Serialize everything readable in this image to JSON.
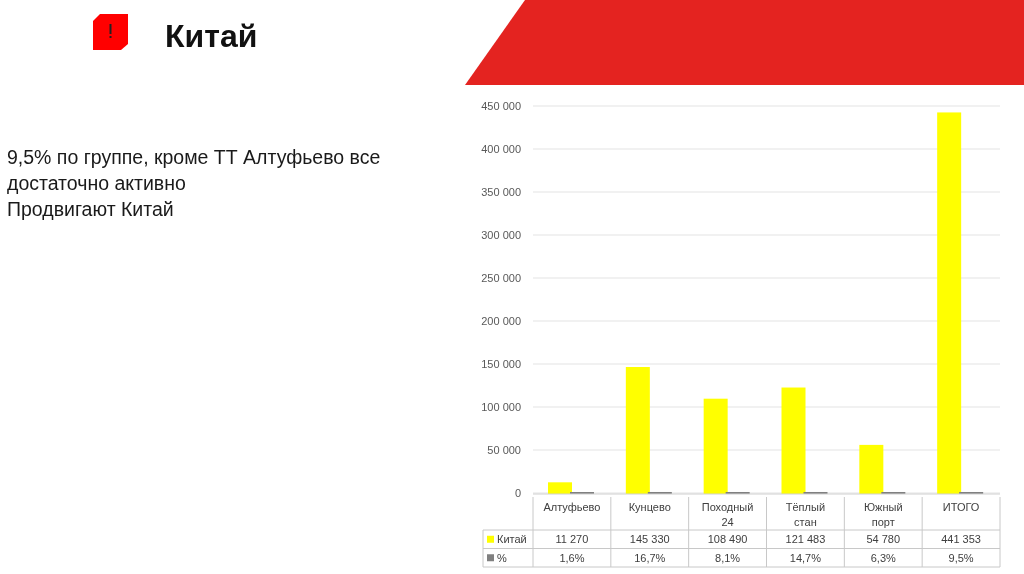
{
  "chart_data": {
    "type": "bar",
    "title": "Китай",
    "annotations": [
      "9,5% по группе, кроме ТТ Алтуфьево все достаточно активно",
      "Продвигают Китай"
    ],
    "categories": [
      "Алтуфьево",
      "Кунцево",
      "Походный 24",
      "Тёплый стан",
      "Южный порт",
      "ИТОГО"
    ],
    "series": [
      {
        "name": "Китай",
        "color": "#ffff00",
        "values": [
          11270,
          145330,
          108490,
          121483,
          54780,
          441353
        ],
        "value_labels": [
          "11 270",
          "145 330",
          "108 490",
          "121 483",
          "54 780",
          "441 353"
        ]
      },
      {
        "name": "%",
        "color": "#808080",
        "values": [
          1.6,
          16.7,
          8.1,
          14.7,
          6.3,
          9.5
        ],
        "value_labels": [
          "1,6%",
          "16,7%",
          "8,1%",
          "14,7%",
          "6,3%",
          "9,5%"
        ]
      }
    ],
    "ylim": [
      0,
      450000
    ],
    "yticks": [
      0,
      {
        "value": 50000,
        "label": "50 000"
      },
      {
        "value": 100000,
        "label": "100 000"
      },
      {
        "value": 150000,
        "label": "150 000"
      },
      {
        "value": 200000,
        "label": "200 000"
      },
      {
        "value": 250000,
        "label": "250 000"
      },
      {
        "value": 300000,
        "label": "300 000"
      },
      {
        "value": 350000,
        "label": "350 000"
      },
      {
        "value": 400000,
        "label": "400 000"
      },
      {
        "value": 450000,
        "label": "450 000"
      }
    ],
    "grid": "y",
    "legend": "bottom left"
  }
}
